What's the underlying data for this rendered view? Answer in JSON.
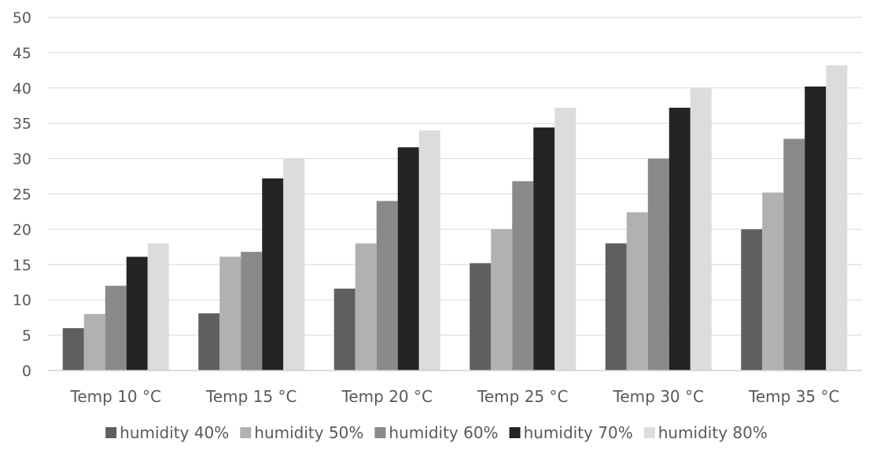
{
  "chart_data": {
    "type": "bar",
    "title": "",
    "xlabel": "",
    "ylabel": "",
    "ylim": [
      0,
      50
    ],
    "yticks": [
      0,
      5,
      10,
      15,
      20,
      25,
      30,
      35,
      40,
      45,
      50
    ],
    "grid": true,
    "legend_position": "bottom",
    "categories": [
      "Temp 10 °C",
      "Temp 15 °C",
      "Temp 20 °C",
      "Temp 25 °C",
      "Temp 30 °C",
      "Temp 35 °C"
    ],
    "series": [
      {
        "name": "humidity 40%",
        "color": "#5f5f5f",
        "values": [
          6,
          8.1,
          11.6,
          15.2,
          18,
          20
        ]
      },
      {
        "name": "humidity 50%",
        "color": "#b1b1b1",
        "values": [
          8,
          16.1,
          18,
          20,
          22.4,
          25.2
        ]
      },
      {
        "name": "humidity 60%",
        "color": "#8a8a8a",
        "values": [
          12,
          16.8,
          24,
          26.8,
          30,
          32.8
        ]
      },
      {
        "name": "humidity 70%",
        "color": "#232323",
        "values": [
          16.1,
          27.2,
          31.6,
          34.4,
          37.2,
          40.2
        ]
      },
      {
        "name": "humidity 80%",
        "color": "#dcdcdc",
        "values": [
          18,
          30,
          34,
          37.2,
          40,
          43.2
        ]
      }
    ]
  }
}
